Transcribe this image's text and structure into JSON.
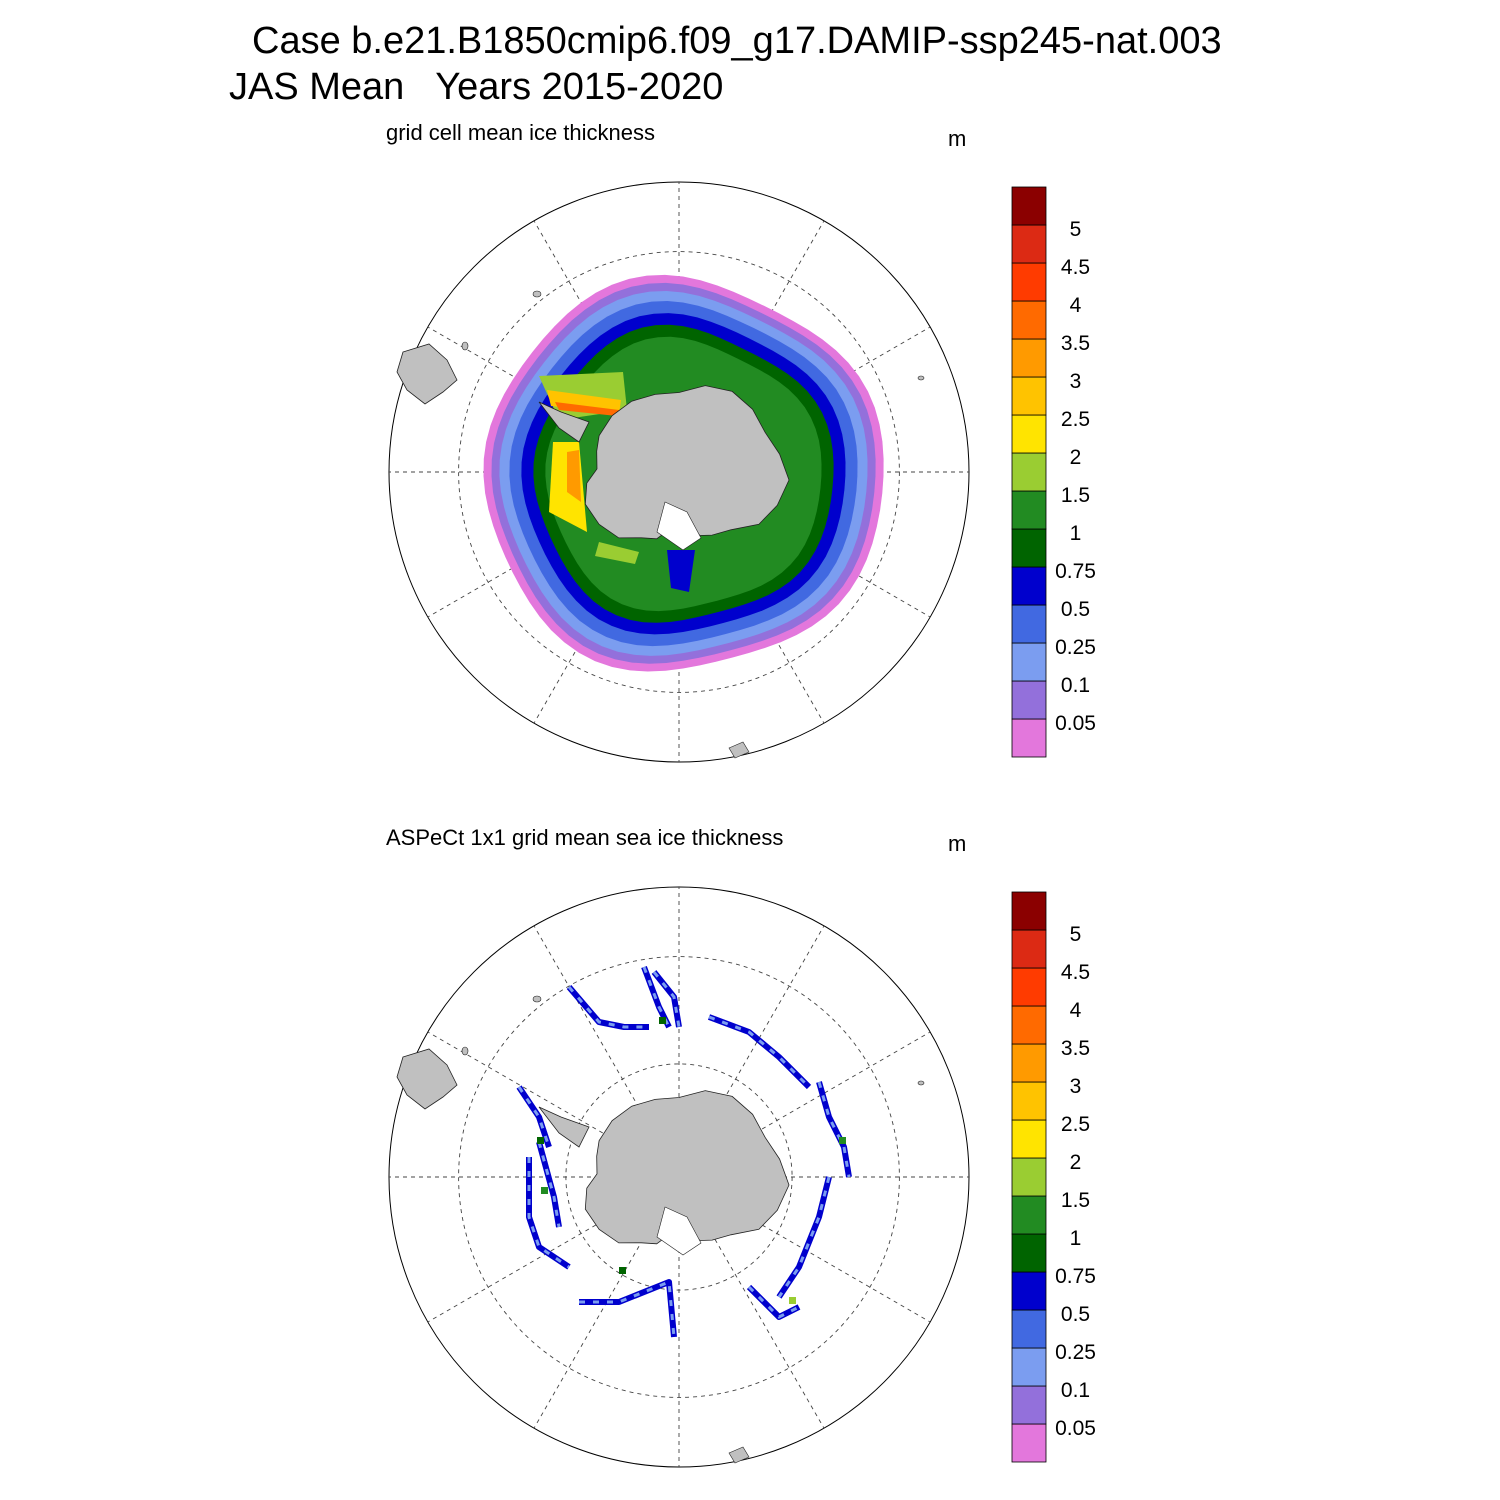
{
  "title": {
    "line1": "Case b.e21.B1850cmip6.f09_g17.DAMIP-ssp245-nat.003",
    "line2": "JAS Mean   Years 2015-2020"
  },
  "colors": {
    "land": "#c0c0c0",
    "ice_levels": [
      "#e377dc",
      "#9370db",
      "#7b9df0",
      "#4169e1",
      "#0000cd",
      "#006400",
      "#228b22",
      "#9acd32",
      "#ffe400",
      "#ffc300",
      "#ff9a00",
      "#ff6a00",
      "#ff3b00",
      "#dc2a14",
      "#8b0000"
    ]
  },
  "colorbar": {
    "labels": [
      "0.05",
      "0.1",
      "0.25",
      "0.5",
      "0.75",
      "1",
      "1.5",
      "2",
      "2.5",
      "3",
      "3.5",
      "4",
      "4.5",
      "5"
    ]
  },
  "panels": [
    {
      "subtitle": "grid cell mean ice thickness",
      "unit": "m",
      "kind": "model"
    },
    {
      "subtitle": "ASPeCt 1x1 grid mean sea ice thickness",
      "unit": "m",
      "kind": "obs"
    }
  ]
}
